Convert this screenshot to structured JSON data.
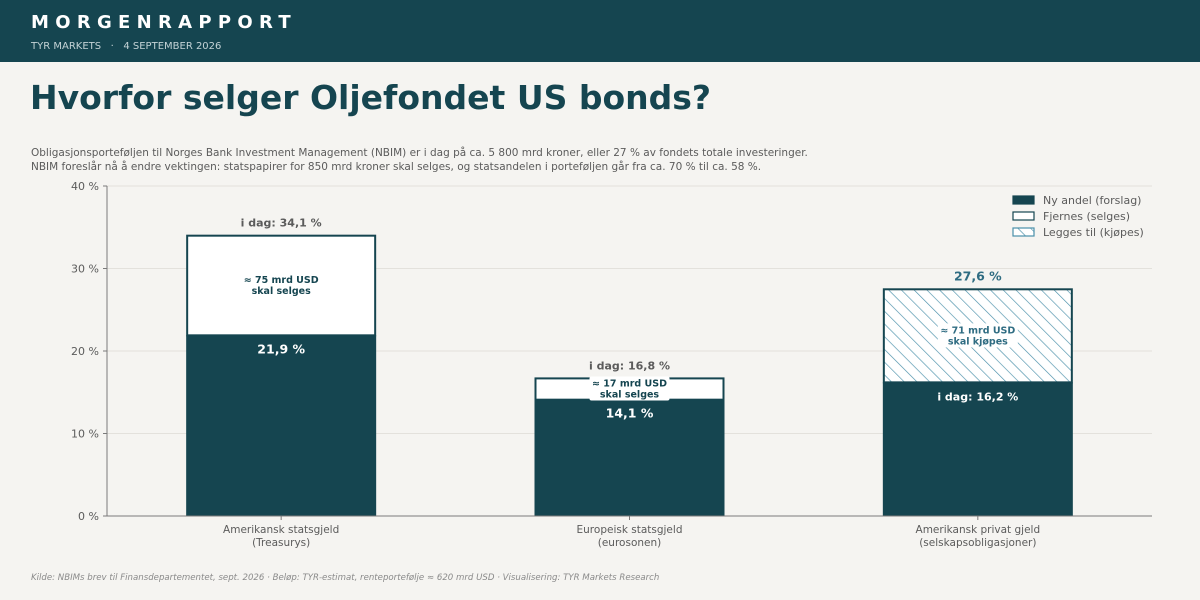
{
  "header": {
    "brand": "MORGENRAPPORT",
    "subline": "TYR MARKETS   ·   4 SEPTEMBER 2026"
  },
  "title": "Hvorfor selger Oljefondet US bonds?",
  "intro": [
    "Obligasjonsporteføljen til Norges Bank Investment Management (NBIM) er i dag på ca. 5 800 mrd kroner, eller 27 % av fondets totale investeringer.",
    "NBIM foreslår nå å endre vektingen: statspapirer for 850 mrd kroner skal selges, og statsandelen i porteføljen går fra ca. 70 % til ca. 58 %."
  ],
  "source": "Kilde: NBIMs brev til Finansdepartementet, sept. 2026 · Beløp: TYR-estimat, renteportefølje ≈ 620 mrd USD · Visualisering: TYR Markets Research",
  "colors": {
    "header_bg": "#154550",
    "bar": "#154550",
    "hatch": "#4a90aa",
    "accent_text": "#2f6c82",
    "background": "#f5f4f1"
  },
  "chart_data": {
    "type": "bar",
    "stacked": true,
    "categories": [
      [
        "Amerikansk statsgjeld",
        "(Treasurys)"
      ],
      [
        "Europeisk statsgjeld",
        "(eurosonen)"
      ],
      [
        "Amerikansk privat gjeld",
        "(selskapsobligasjoner)"
      ]
    ],
    "ylim": [
      0,
      40
    ],
    "yticks": [
      0,
      10,
      20,
      30,
      40
    ],
    "ytick_labels": [
      "0 %",
      "10 %",
      "20 %",
      "30 %",
      "40 %"
    ],
    "grid": true,
    "legend_position": "top-right",
    "legend": [
      {
        "label": "Ny andel (forslag)",
        "style": "solid"
      },
      {
        "label": "Fjernes (selges)",
        "style": "outline"
      },
      {
        "label": "Legges til (kjøpes)",
        "style": "hatched"
      }
    ],
    "bars": [
      {
        "base": 21.9,
        "base_label": "21,9 %",
        "delta": 12.2,
        "delta_kind": "remove",
        "total": 34.1,
        "top_label": "i dag: 34,1 %",
        "delta_label": [
          "≈ 75 mrd USD",
          "skal selges"
        ]
      },
      {
        "base": 14.1,
        "base_label": "14,1 %",
        "delta": 2.7,
        "delta_kind": "remove",
        "total": 16.8,
        "top_label": "i dag: 16,8 %",
        "delta_label": [
          "≈ 17 mrd USD",
          "skal selges"
        ]
      },
      {
        "base": 16.2,
        "base_label": "i dag: 16,2 %",
        "delta": 11.4,
        "delta_kind": "add",
        "total": 27.6,
        "top_label": "27,6 %",
        "delta_label": [
          "≈ 71 mrd USD",
          "skal kjøpes"
        ]
      }
    ]
  }
}
